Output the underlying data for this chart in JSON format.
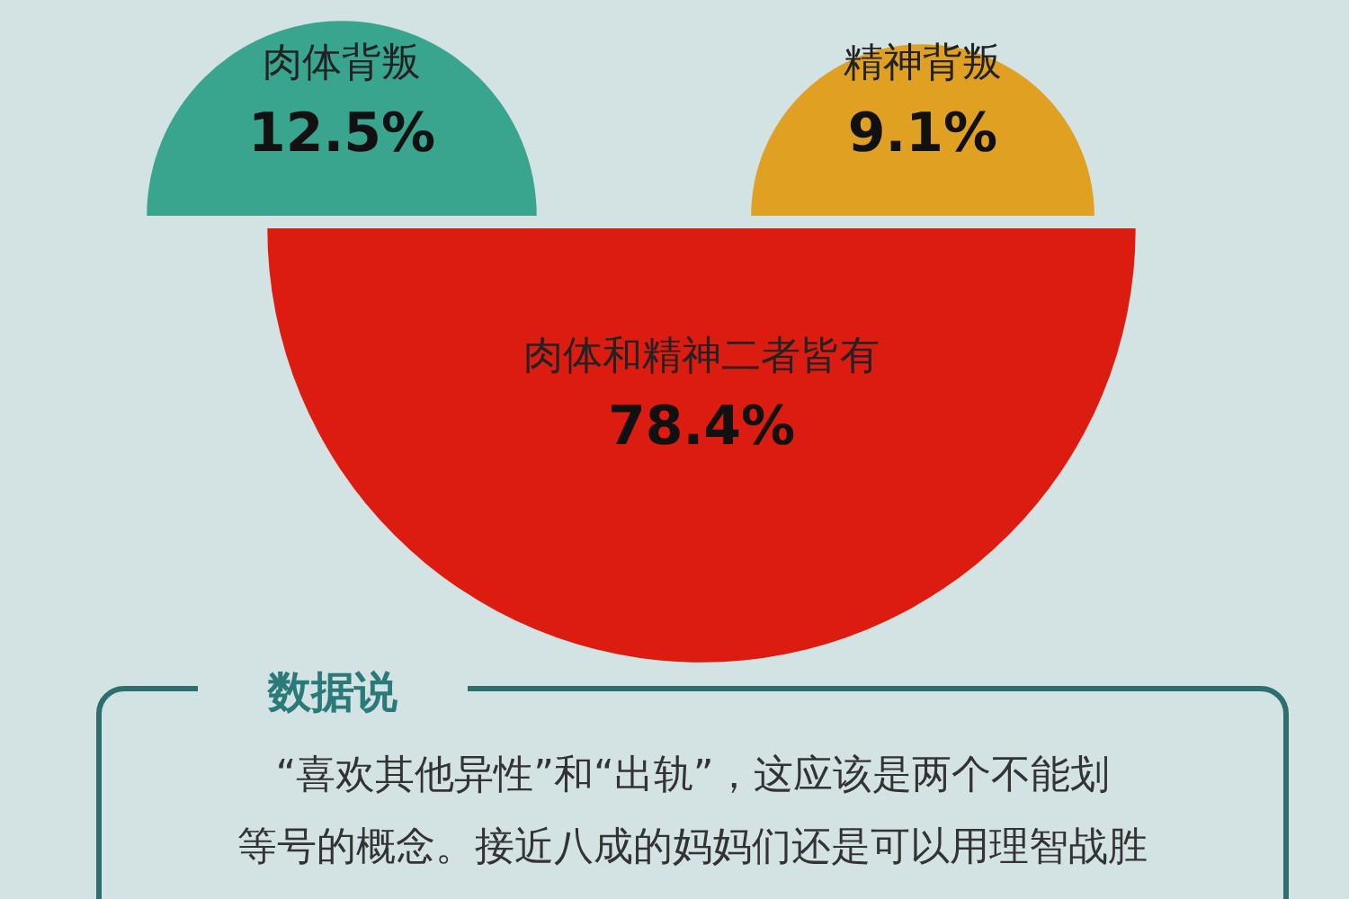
{
  "chart_data": {
    "type": "other",
    "categories": [
      "肉体背叛",
      "精神背叛",
      "肉体和精神二者皆有"
    ],
    "values": [
      12.5,
      9.1,
      78.4
    ],
    "colors": [
      "#3aa58f",
      "#e0a021",
      "#dc1c10"
    ],
    "value_labels": [
      "12.5%",
      "9.1%",
      "78.4%"
    ],
    "annotations": [
      "数据说",
      "“喜欢其他异性”和“出轨”，这应该是两个不能划",
      "等号的概念。接近八成的妈妈们还是可以用理智战胜"
    ]
  }
}
